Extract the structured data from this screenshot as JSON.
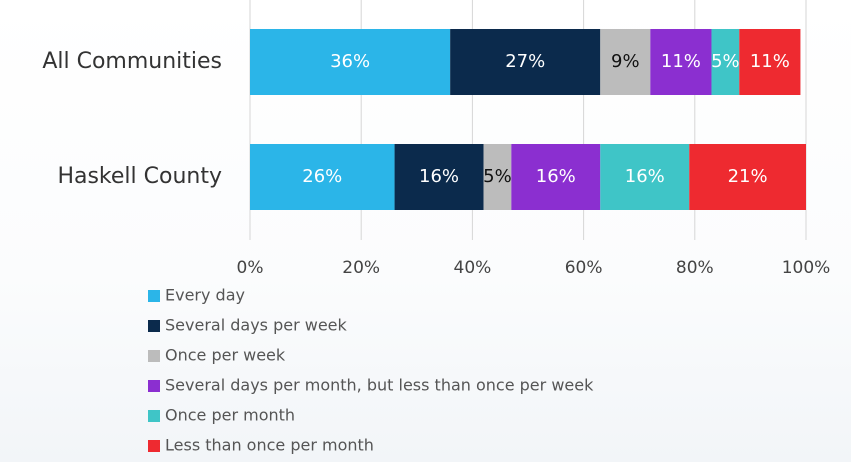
{
  "chart_data": {
    "type": "stacked_barh",
    "categories": [
      "All Communities",
      "Haskell County"
    ],
    "series": [
      {
        "name": "Every day",
        "color": "#2bb5e8",
        "label_color": "#ffffff",
        "values": [
          36,
          26
        ],
        "value_labels": [
          "36%",
          "26%"
        ]
      },
      {
        "name": "Several days per week",
        "color": "#0b2a4c",
        "label_color": "#ffffff",
        "values": [
          27,
          16
        ],
        "value_labels": [
          "27%",
          "16%"
        ]
      },
      {
        "name": "Once per week",
        "color": "#bcbcbc",
        "label_color": "#111111",
        "values": [
          9,
          5
        ],
        "value_labels": [
          "9%",
          "5%"
        ]
      },
      {
        "name": "Several days per month, but less than once per week",
        "color": "#8b2fd0",
        "label_color": "#ffffff",
        "values": [
          11,
          16
        ],
        "value_labels": [
          "11%",
          "16%"
        ]
      },
      {
        "name": "Once per month",
        "color": "#3fc5c7",
        "label_color": "#ffffff",
        "values": [
          5,
          16
        ],
        "value_labels": [
          "5%",
          "16%"
        ]
      },
      {
        "name": "Less than once per month",
        "color": "#ee2a30",
        "label_color": "#ffffff",
        "values": [
          11,
          21
        ],
        "value_labels": [
          "11%",
          "21%"
        ]
      }
    ],
    "xlim": [
      0,
      100
    ],
    "xticks": [
      {
        "value": 0,
        "label": "0%"
      },
      {
        "value": 20,
        "label": "20%"
      },
      {
        "value": 40,
        "label": "40%"
      },
      {
        "value": 60,
        "label": "60%"
      },
      {
        "value": 80,
        "label": "80%"
      },
      {
        "value": 100,
        "label": "100%"
      }
    ],
    "grid": true
  }
}
